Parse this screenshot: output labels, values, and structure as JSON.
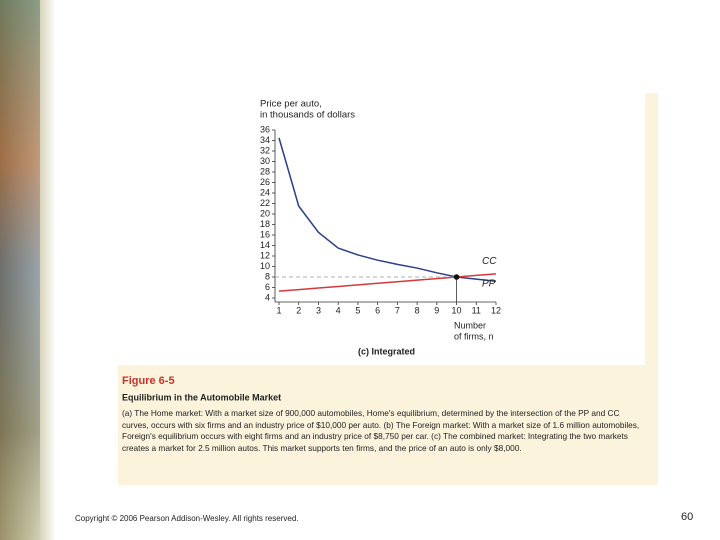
{
  "chart_data": {
    "type": "line",
    "subtitle": "(c) Integrated",
    "y_label": [
      "Price per auto,",
      "in thousands of dollars"
    ],
    "x_label": [
      "Number",
      "of firms, n"
    ],
    "x": [
      1,
      2,
      3,
      4,
      5,
      6,
      7,
      8,
      9,
      10,
      11,
      12
    ],
    "series": [
      {
        "name": "CC",
        "color": "#2b3f8f",
        "values": [
          34.5,
          21.5,
          16.5,
          13.5,
          12.2,
          11.2,
          10.4,
          9.7,
          8.8,
          8,
          7.6,
          7.2
        ]
      },
      {
        "name": "PP",
        "color": "#d43a3a",
        "values": [
          5.3,
          5.6,
          5.9,
          6.2,
          6.5,
          6.8,
          7.1,
          7.4,
          7.7,
          8,
          8.3,
          8.6
        ]
      }
    ],
    "xlim": [
      1,
      12
    ],
    "xticks": [
      1,
      2,
      3,
      4,
      5,
      6,
      7,
      8,
      9,
      10,
      11,
      12
    ],
    "ylim": [
      4,
      36
    ],
    "yticks": [
      4,
      6,
      8,
      10,
      12,
      14,
      16,
      18,
      20,
      22,
      24,
      26,
      28,
      30,
      32,
      34,
      36
    ],
    "grid": false
  },
  "figure": {
    "number": "Figure 6-5",
    "title": "Equilibrium in the Automobile Market",
    "caption": "(a) The Home market: With a market size of 900,000 automobiles, Home's equilibrium, determined by the intersection of the PP and CC curves, occurs with six firms and an industry price of $10,000 per auto. (b) The Foreign market: With a market size of 1.6 million automobiles, Foreign's equilibrium occurs with eight firms and an industry price of $8,750 per car. (c) The combined market: Integrating the two markets creates a market for 2.5 million autos. This market supports ten firms, and the price of an auto is only $8,000."
  },
  "footer": {
    "copyright": "Copyright © 2006 Pearson Addison-Wesley. All rights reserved.",
    "page": "60"
  }
}
